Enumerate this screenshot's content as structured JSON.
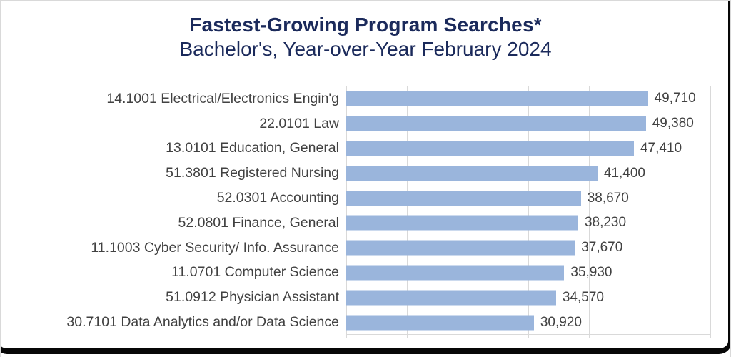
{
  "colors": {
    "bar": "#9ab5dc",
    "gridline": "#d9d9d9",
    "title": "#1b2a5b",
    "label": "#414141",
    "frame": "#070707"
  },
  "chart_data": {
    "type": "bar",
    "orientation": "horizontal",
    "title": "Fastest-Growing Program Searches*",
    "subtitle": "Bachelor's, Year-over-Year February 2024",
    "categories": [
      "14.1001 Electrical/Electronics Engin'g",
      "22.0101 Law",
      "13.0101 Education, General",
      "51.3801 Registered Nursing",
      "52.0301 Accounting",
      "52.0801 Finance, General",
      "11.1003 Cyber Security/ Info. Assurance",
      "11.0701 Computer Science",
      "51.0912 Physician Assistant",
      "30.7101 Data Analytics and/or Data Science"
    ],
    "values": [
      49710,
      49380,
      47410,
      41400,
      38670,
      38230,
      37670,
      35930,
      34570,
      30920
    ],
    "value_labels": [
      "49,710",
      "49,380",
      "47,410",
      "41,400",
      "38,670",
      "38,230",
      "37,670",
      "35,930",
      "34,570",
      "30,920"
    ],
    "xlabel": "",
    "ylabel": "",
    "xlim": [
      0,
      60000
    ],
    "gridline_interval": 10000,
    "grid": true,
    "legend": false,
    "data_labels": true
  }
}
